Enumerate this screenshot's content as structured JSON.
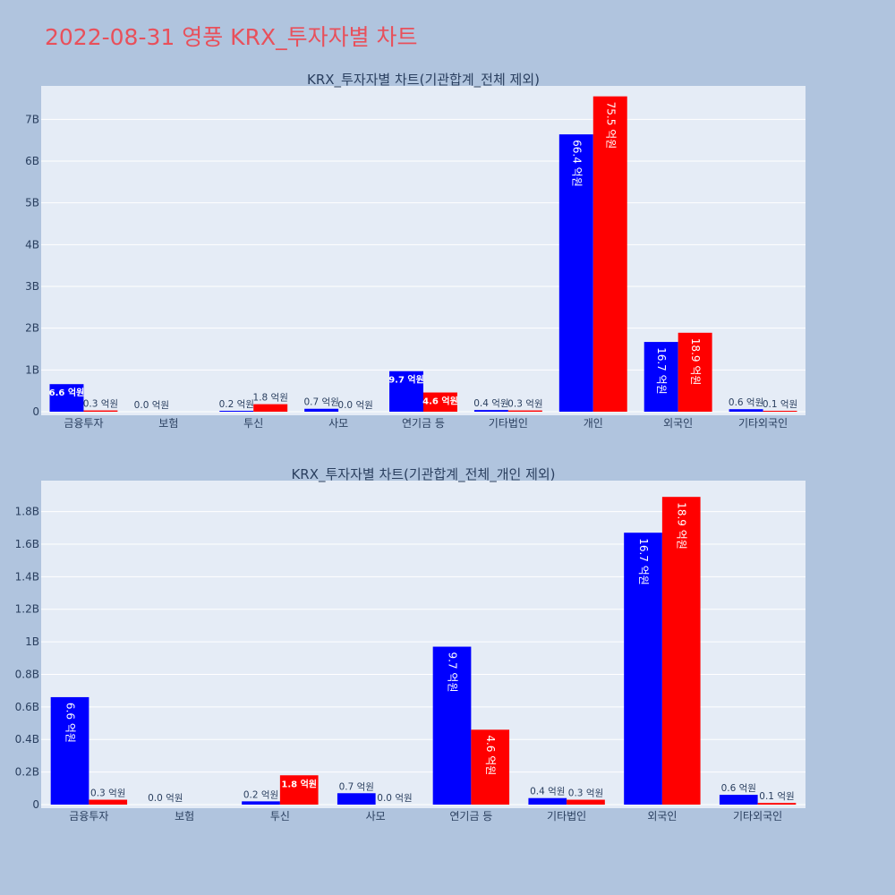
{
  "page_title": "2022-08-31 영풍 KRX_투자자별 차트",
  "colors": {
    "background": "#b0c4de",
    "title": "#e8505b",
    "plot_bg": "#e5ecf6",
    "series1": "#0000ff",
    "series2": "#ff0000"
  },
  "chart_data": [
    {
      "type": "bar",
      "title": "KRX_투자자별 차트(기관합계_전체 제외)",
      "categories": [
        "금융투자",
        "보험",
        "투신",
        "사모",
        "연기금 등",
        "기타법인",
        "개인",
        "외국인",
        "기타외국인"
      ],
      "series": [
        {
          "color": "#0000ff",
          "values": [
            0.66,
            0.0,
            0.02,
            0.07,
            0.97,
            0.04,
            6.64,
            1.67,
            0.06
          ],
          "labels": [
            "6.6 억원",
            "0.0 억원",
            "0.2 억원",
            "0.7 억원",
            "9.7 억원",
            "0.4 억원",
            "66.4 억원",
            "16.7 억원",
            "0.6 억원"
          ]
        },
        {
          "color": "#ff0000",
          "values": [
            0.03,
            0.0,
            0.18,
            0.0,
            0.46,
            0.03,
            7.55,
            1.89,
            0.01
          ],
          "labels": [
            "0.3 억원",
            "",
            "1.8 억원",
            "0.0 억원",
            "4.6 억원",
            "0.3 억원",
            "75.5 억원",
            "18.9 억원",
            "0.1 억원"
          ]
        }
      ],
      "ylim": [
        0,
        7.8
      ],
      "yticks": [
        0,
        1,
        2,
        3,
        4,
        5,
        6,
        7
      ],
      "ytick_labels": [
        "0",
        "1B",
        "2B",
        "3B",
        "4B",
        "5B",
        "6B",
        "7B"
      ],
      "grid": true
    },
    {
      "type": "bar",
      "title": "KRX_투자자별 차트(기관합계_전체_개인 제외)",
      "categories": [
        "금융투자",
        "보험",
        "투신",
        "사모",
        "연기금 등",
        "기타법인",
        "외국인",
        "기타외국인"
      ],
      "series": [
        {
          "color": "#0000ff",
          "values": [
            0.66,
            0.0,
            0.02,
            0.07,
            0.97,
            0.04,
            1.67,
            0.06
          ],
          "labels": [
            "6.6 억원",
            "0.0 억원",
            "0.2 억원",
            "0.7 억원",
            "9.7 억원",
            "0.4 억원",
            "16.7 억원",
            "0.6 억원"
          ]
        },
        {
          "color": "#ff0000",
          "values": [
            0.03,
            0.0,
            0.18,
            0.0,
            0.46,
            0.03,
            1.89,
            0.01
          ],
          "labels": [
            "0.3 억원",
            "",
            "1.8 억원",
            "0.0 억원",
            "4.6 억원",
            "0.3 억원",
            "18.9 억원",
            "0.1 억원"
          ]
        }
      ],
      "ylim": [
        0,
        1.99
      ],
      "yticks": [
        0,
        0.2,
        0.4,
        0.6,
        0.8,
        1.0,
        1.2,
        1.4,
        1.6,
        1.8
      ],
      "ytick_labels": [
        "0",
        "0.2B",
        "0.4B",
        "0.6B",
        "0.8B",
        "1B",
        "1.2B",
        "1.4B",
        "1.6B",
        "1.8B"
      ],
      "grid": true
    }
  ]
}
